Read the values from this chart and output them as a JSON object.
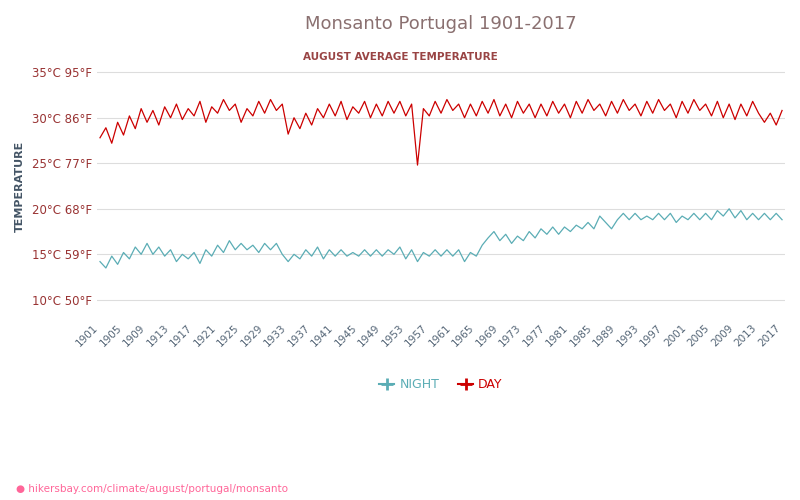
{
  "title": "Monsanto Portugal 1901-2017",
  "subtitle": "AUGUST AVERAGE TEMPERATURE",
  "ylabel": "TEMPERATURE",
  "url_text": "hikersbay.com/climate/august/portugal/monsanto",
  "ylim": [
    8,
    37
  ],
  "yticks_c": [
    10,
    15,
    20,
    25,
    30,
    35
  ],
  "ytick_labels": [
    "10°C 50°F",
    "15°C 59°F",
    "20°C 68°F",
    "25°C 77°F",
    "30°C 86°F",
    "35°C 95°F"
  ],
  "xtick_years": [
    1901,
    1905,
    1909,
    1913,
    1917,
    1921,
    1925,
    1929,
    1933,
    1937,
    1941,
    1945,
    1949,
    1953,
    1957,
    1961,
    1965,
    1969,
    1973,
    1977,
    1981,
    1985,
    1989,
    1993,
    1997,
    2001,
    2005,
    2009,
    2013,
    2017
  ],
  "start_year": 1901,
  "end_year": 2017,
  "day_color": "#cc0000",
  "night_color": "#5badb5",
  "background_color": "#ffffff",
  "grid_color": "#dddddd",
  "title_color": "#8a7070",
  "subtitle_color": "#994444",
  "ylabel_color": "#445566",
  "ytick_color": "#993333",
  "xtick_color": "#556677",
  "url_color": "#ff6699",
  "legend_night_label": "NIGHT",
  "legend_day_label": "DAY",
  "day_temps": [
    27.8,
    28.9,
    27.2,
    29.5,
    28.1,
    30.2,
    28.8,
    31.0,
    29.5,
    30.8,
    29.2,
    31.2,
    30.0,
    31.5,
    29.8,
    31.0,
    30.2,
    31.8,
    29.5,
    31.2,
    30.5,
    32.0,
    30.8,
    31.5,
    29.5,
    31.0,
    30.2,
    31.8,
    30.5,
    32.0,
    30.8,
    31.5,
    28.2,
    30.0,
    28.8,
    30.5,
    29.2,
    31.0,
    30.0,
    31.5,
    30.2,
    31.8,
    29.8,
    31.2,
    30.5,
    31.8,
    30.0,
    31.5,
    30.2,
    31.8,
    30.5,
    31.8,
    30.2,
    31.5,
    24.8,
    31.0,
    30.2,
    31.8,
    30.5,
    32.0,
    30.8,
    31.5,
    30.0,
    31.5,
    30.2,
    31.8,
    30.5,
    32.0,
    30.2,
    31.5,
    30.0,
    31.8,
    30.5,
    31.5,
    30.0,
    31.5,
    30.2,
    31.8,
    30.5,
    31.5,
    30.0,
    31.8,
    30.5,
    32.0,
    30.8,
    31.5,
    30.2,
    31.8,
    30.5,
    32.0,
    30.8,
    31.5,
    30.2,
    31.8,
    30.5,
    32.0,
    30.8,
    31.5,
    30.0,
    31.8,
    30.5,
    32.0,
    30.8,
    31.5,
    30.2,
    31.8,
    30.0,
    31.5,
    29.8,
    31.5,
    30.2,
    31.8,
    30.5,
    29.5,
    30.5,
    29.2,
    30.8
  ],
  "night_temps": [
    14.2,
    13.5,
    14.8,
    13.9,
    15.2,
    14.5,
    15.8,
    15.0,
    16.2,
    15.0,
    15.8,
    14.8,
    15.5,
    14.2,
    15.0,
    14.5,
    15.2,
    14.0,
    15.5,
    14.8,
    16.0,
    15.2,
    16.5,
    15.5,
    16.2,
    15.5,
    16.0,
    15.2,
    16.2,
    15.5,
    16.2,
    15.0,
    14.2,
    15.0,
    14.5,
    15.5,
    14.8,
    15.8,
    14.5,
    15.5,
    14.8,
    15.5,
    14.8,
    15.2,
    14.8,
    15.5,
    14.8,
    15.5,
    14.8,
    15.5,
    15.0,
    15.8,
    14.5,
    15.5,
    14.2,
    15.2,
    14.8,
    15.5,
    14.8,
    15.5,
    14.8,
    15.5,
    14.2,
    15.2,
    14.8,
    16.0,
    16.8,
    17.5,
    16.5,
    17.2,
    16.2,
    17.0,
    16.5,
    17.5,
    16.8,
    17.8,
    17.2,
    18.0,
    17.2,
    18.0,
    17.5,
    18.2,
    17.8,
    18.5,
    17.8,
    19.2,
    18.5,
    17.8,
    18.8,
    19.5,
    18.8,
    19.5,
    18.8,
    19.2,
    18.8,
    19.5,
    18.8,
    19.5,
    18.5,
    19.2,
    18.8,
    19.5,
    18.8,
    19.5,
    18.8,
    19.8,
    19.2,
    20.0,
    19.0,
    19.8,
    18.8,
    19.5,
    18.8,
    19.5,
    18.8,
    19.5,
    18.8
  ]
}
